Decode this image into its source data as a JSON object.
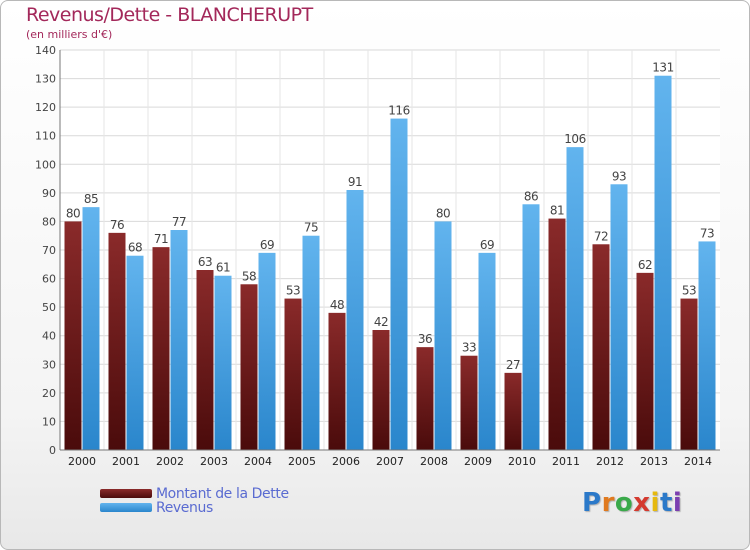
{
  "title": "Revenus/Dette - BLANCHERUPT",
  "subtitle": "(en milliers d'€)",
  "legend": {
    "dette": "Montant de la Dette",
    "revenus": "Revenus"
  },
  "logo": {
    "text": "Proxiti",
    "letter_colors": [
      "#2b79c9",
      "#e07a1f",
      "#3aa94a",
      "#d43a2f",
      "#e6b90f",
      "#2b79c9",
      "#7c3fb0"
    ]
  },
  "colors": {
    "dette_top": "#8a2a2a",
    "dette_bottom": "#4a0b0b",
    "revenus_top": "#62b4ee",
    "revenus_bottom": "#2a86cc",
    "title": "#a3285a",
    "legend_text": "#5a6bd1"
  },
  "chart_data": {
    "type": "bar",
    "categories": [
      "2000",
      "2001",
      "2002",
      "2003",
      "2004",
      "2005",
      "2006",
      "2007",
      "2008",
      "2009",
      "2010",
      "2011",
      "2012",
      "2013",
      "2014"
    ],
    "series": [
      {
        "name": "Montant de la Dette",
        "values": [
          80,
          76,
          71,
          63,
          58,
          53,
          48,
          42,
          36,
          33,
          27,
          81,
          72,
          62,
          53
        ]
      },
      {
        "name": "Revenus",
        "values": [
          85,
          68,
          77,
          61,
          69,
          75,
          91,
          116,
          80,
          69,
          86,
          106,
          93,
          131,
          73
        ]
      }
    ],
    "ylim": [
      0,
      140
    ],
    "yticks": [
      0,
      10,
      20,
      30,
      40,
      50,
      60,
      70,
      80,
      90,
      100,
      110,
      120,
      130,
      140
    ],
    "grid": true,
    "legend_position": "bottom-left"
  }
}
